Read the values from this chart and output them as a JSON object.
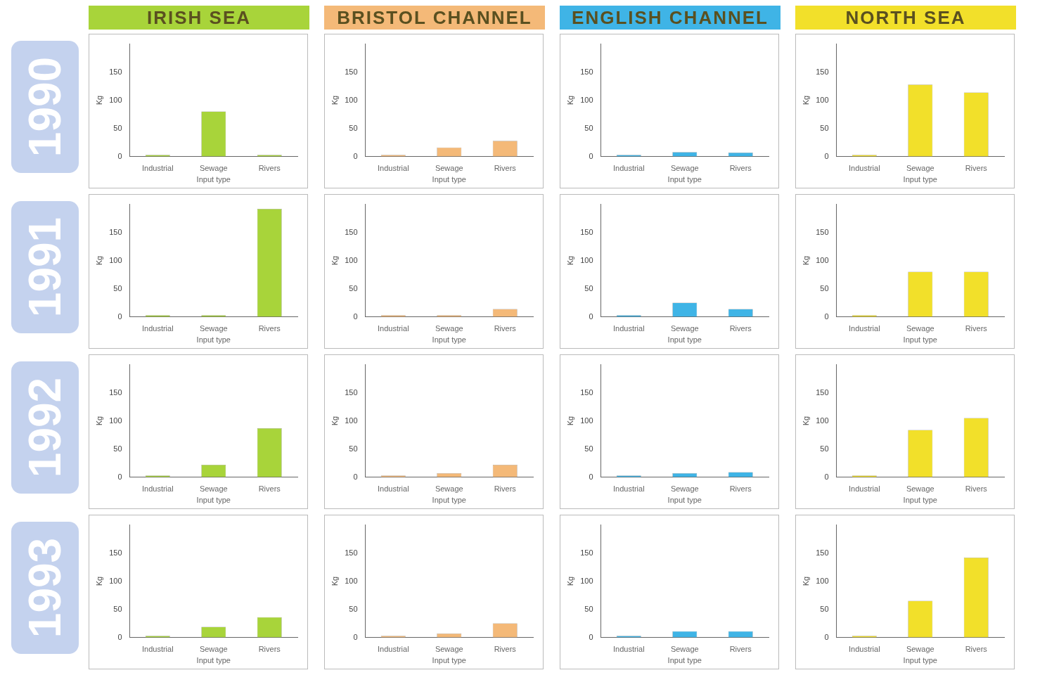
{
  "chart_data": [
    {
      "type": "bar",
      "title": "IRISH SEA",
      "annotations": [
        "1990"
      ],
      "categories": [
        "Industrial",
        "Sewage",
        "Rivers"
      ],
      "values": [
        3,
        80,
        3
      ],
      "color": "#a8d43a",
      "xlabel": "Input type",
      "ylabel": "Kg",
      "ylim": [
        0,
        200
      ],
      "yticks": [
        0,
        50,
        100,
        150
      ]
    },
    {
      "type": "bar",
      "title": "BRISTOL CHANNEL",
      "categories": [
        "Industrial",
        "Sewage",
        "Rivers"
      ],
      "values": [
        3,
        16,
        28
      ],
      "color": "#f4b978",
      "xlabel": "Input type",
      "ylabel": "Kg",
      "ylim": [
        0,
        200
      ],
      "yticks": [
        0,
        50,
        100,
        150
      ]
    },
    {
      "type": "bar",
      "title": "ENGLISH CHANNEL",
      "categories": [
        "Industrial",
        "Sewage",
        "Rivers"
      ],
      "values": [
        3,
        8,
        7
      ],
      "color": "#3fb4e6",
      "xlabel": "Input type",
      "ylabel": "Kg",
      "ylim": [
        0,
        200
      ],
      "yticks": [
        0,
        50,
        100,
        150
      ]
    },
    {
      "type": "bar",
      "title": "NORTH SEA",
      "categories": [
        "Industrial",
        "Sewage",
        "Rivers"
      ],
      "values": [
        3,
        128,
        114
      ],
      "color": "#f2e02a",
      "xlabel": "Input type",
      "ylabel": "Kg",
      "ylim": [
        0,
        200
      ],
      "yticks": [
        0,
        50,
        100,
        150
      ]
    },
    {
      "type": "bar",
      "annotations": [
        "1991"
      ],
      "categories": [
        "Industrial",
        "Sewage",
        "Rivers"
      ],
      "values": [
        3,
        3,
        192
      ],
      "color": "#a8d43a",
      "xlabel": "Input type",
      "ylabel": "Kg",
      "ylim": [
        0,
        200
      ],
      "yticks": [
        0,
        50,
        100,
        150
      ]
    },
    {
      "type": "bar",
      "categories": [
        "Industrial",
        "Sewage",
        "Rivers"
      ],
      "values": [
        3,
        3,
        14
      ],
      "color": "#f4b978",
      "xlabel": "Input type",
      "ylabel": "Kg",
      "ylim": [
        0,
        200
      ],
      "yticks": [
        0,
        50,
        100,
        150
      ]
    },
    {
      "type": "bar",
      "categories": [
        "Industrial",
        "Sewage",
        "Rivers"
      ],
      "values": [
        3,
        25,
        14
      ],
      "color": "#3fb4e6",
      "xlabel": "Input type",
      "ylabel": "Kg",
      "ylim": [
        0,
        200
      ],
      "yticks": [
        0,
        50,
        100,
        150
      ]
    },
    {
      "type": "bar",
      "categories": [
        "Industrial",
        "Sewage",
        "Rivers"
      ],
      "values": [
        3,
        80,
        80
      ],
      "color": "#f2e02a",
      "xlabel": "Input type",
      "ylabel": "Kg",
      "ylim": [
        0,
        200
      ],
      "yticks": [
        0,
        50,
        100,
        150
      ]
    },
    {
      "type": "bar",
      "annotations": [
        "1992"
      ],
      "categories": [
        "Industrial",
        "Sewage",
        "Rivers"
      ],
      "values": [
        3,
        22,
        87
      ],
      "color": "#a8d43a",
      "xlabel": "Input type",
      "ylabel": "Kg",
      "ylim": [
        0,
        200
      ],
      "yticks": [
        0,
        50,
        100,
        150
      ]
    },
    {
      "type": "bar",
      "categories": [
        "Industrial",
        "Sewage",
        "Rivers"
      ],
      "values": [
        3,
        7,
        22
      ],
      "color": "#f4b978",
      "xlabel": "Input type",
      "ylabel": "Kg",
      "ylim": [
        0,
        200
      ],
      "yticks": [
        0,
        50,
        100,
        150
      ]
    },
    {
      "type": "bar",
      "categories": [
        "Industrial",
        "Sewage",
        "Rivers"
      ],
      "values": [
        3,
        7,
        9
      ],
      "color": "#3fb4e6",
      "xlabel": "Input type",
      "ylabel": "Kg",
      "ylim": [
        0,
        200
      ],
      "yticks": [
        0,
        50,
        100,
        150
      ]
    },
    {
      "type": "bar",
      "categories": [
        "Industrial",
        "Sewage",
        "Rivers"
      ],
      "values": [
        3,
        84,
        105
      ],
      "color": "#f2e02a",
      "xlabel": "Input type",
      "ylabel": "Kg",
      "ylim": [
        0,
        200
      ],
      "yticks": [
        0,
        50,
        100,
        150
      ]
    },
    {
      "type": "bar",
      "annotations": [
        "1993"
      ],
      "categories": [
        "Industrial",
        "Sewage",
        "Rivers"
      ],
      "values": [
        3,
        19,
        36
      ],
      "color": "#a8d43a",
      "xlabel": "Input type",
      "ylabel": "Kg",
      "ylim": [
        0,
        200
      ],
      "yticks": [
        0,
        50,
        100,
        150
      ]
    },
    {
      "type": "bar",
      "categories": [
        "Industrial",
        "Sewage",
        "Rivers"
      ],
      "values": [
        3,
        7,
        25
      ],
      "color": "#f4b978",
      "xlabel": "Input type",
      "ylabel": "Kg",
      "ylim": [
        0,
        200
      ],
      "yticks": [
        0,
        50,
        100,
        150
      ]
    },
    {
      "type": "bar",
      "categories": [
        "Industrial",
        "Sewage",
        "Rivers"
      ],
      "values": [
        3,
        11,
        11
      ],
      "color": "#3fb4e6",
      "xlabel": "Input type",
      "ylabel": "Kg",
      "ylim": [
        0,
        200
      ],
      "yticks": [
        0,
        50,
        100,
        150
      ]
    },
    {
      "type": "bar",
      "categories": [
        "Industrial",
        "Sewage",
        "Rivers"
      ],
      "values": [
        3,
        65,
        142
      ],
      "color": "#f2e02a",
      "xlabel": "Input type",
      "ylabel": "Kg",
      "ylim": [
        0,
        200
      ],
      "yticks": [
        0,
        50,
        100,
        150
      ]
    }
  ]
}
